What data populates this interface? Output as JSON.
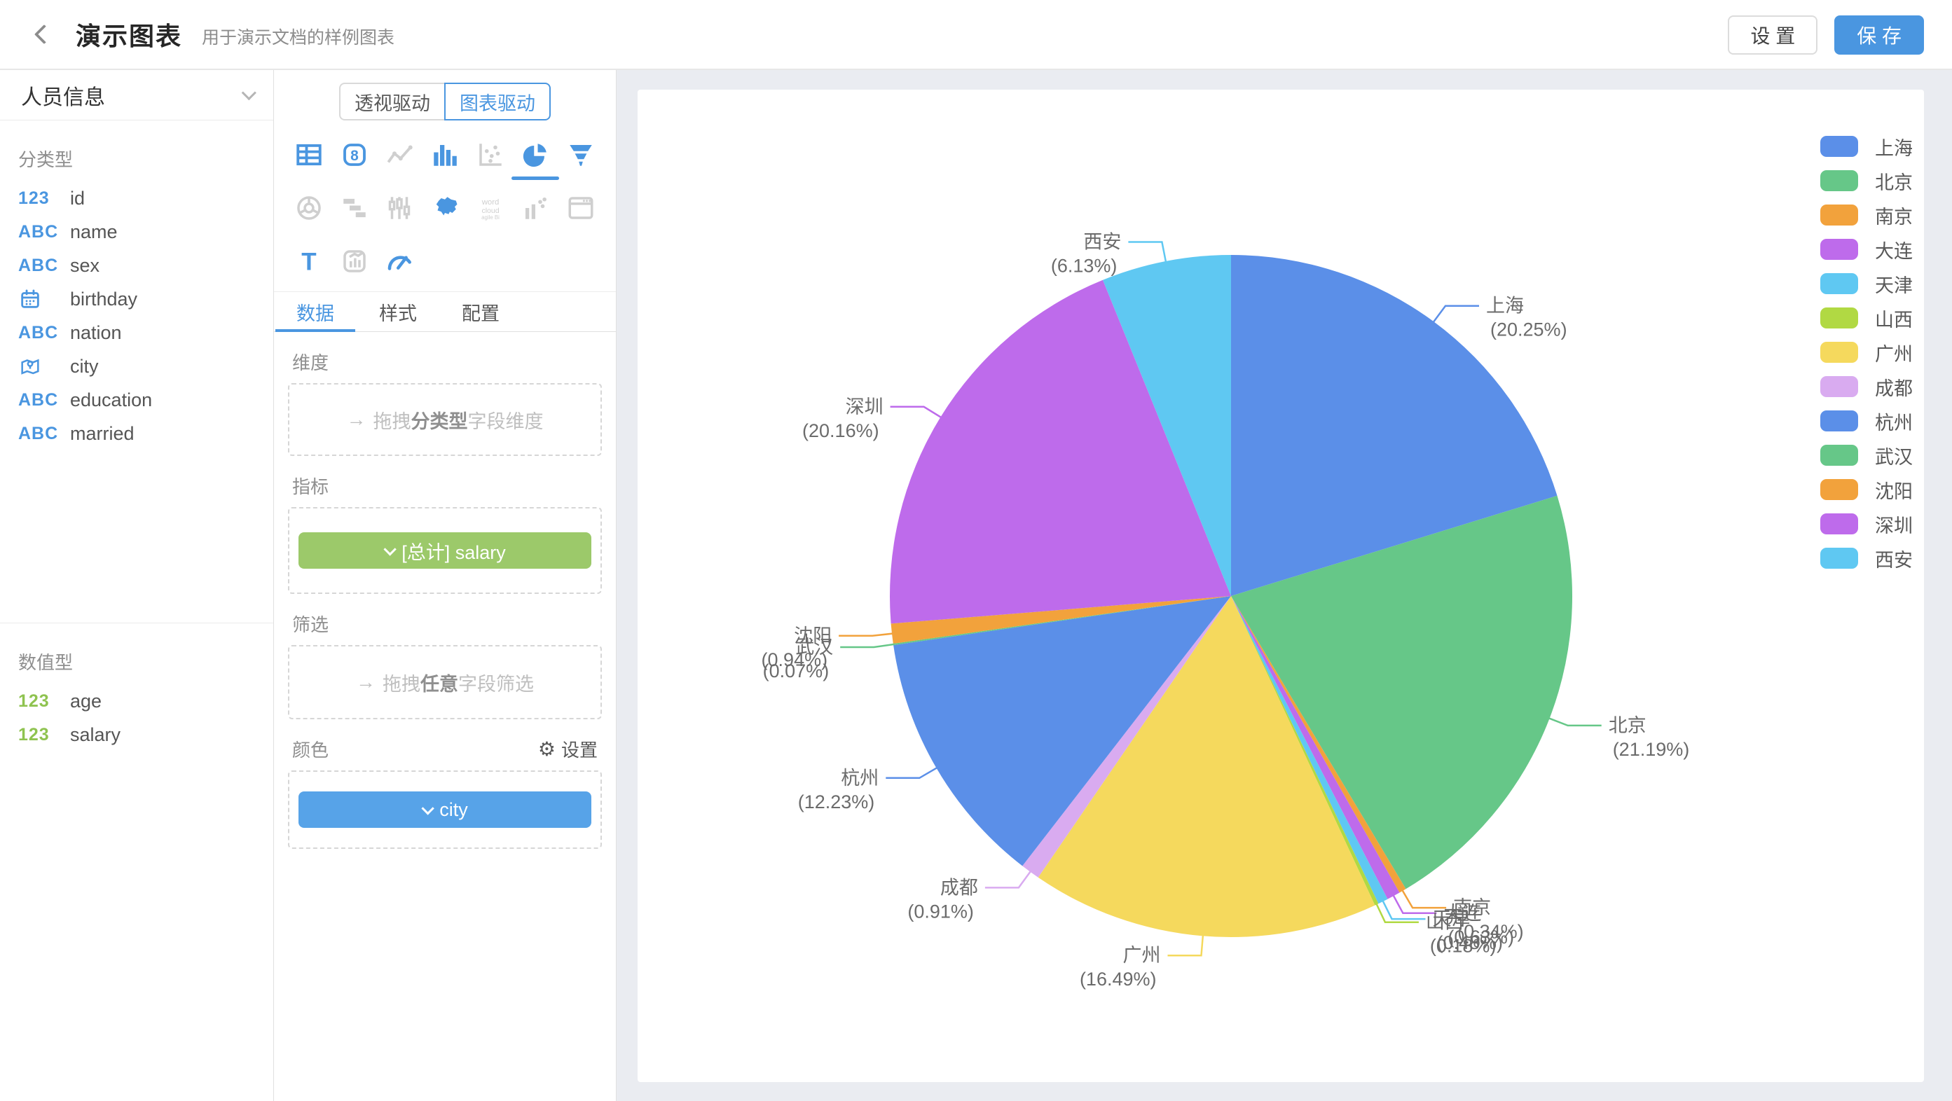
{
  "header": {
    "title": "演示图表",
    "subtitle": "用于演示文档的样例图表",
    "settings_label": "设 置",
    "save_label": "保 存"
  },
  "sidebar": {
    "dataset": "人员信息",
    "categorical_title": "分类型",
    "categorical_fields": [
      {
        "type": "number",
        "label": "id"
      },
      {
        "type": "text",
        "label": "name"
      },
      {
        "type": "text",
        "label": "sex"
      },
      {
        "type": "date",
        "label": "birthday"
      },
      {
        "type": "text",
        "label": "nation"
      },
      {
        "type": "location",
        "label": "city"
      },
      {
        "type": "text",
        "label": "education"
      },
      {
        "type": "text",
        "label": "married"
      }
    ],
    "numeric_title": "数值型",
    "numeric_fields": [
      {
        "type": "number",
        "label": "age"
      },
      {
        "type": "number",
        "label": "salary"
      }
    ],
    "icon_glyphs": {
      "number": "123",
      "text": "ABC"
    }
  },
  "panel": {
    "mode_pivot": "透视驱动",
    "mode_chart": "图表驱动",
    "chart_types": [
      {
        "name": "table",
        "active": true
      },
      {
        "name": "indicator-card",
        "active": true
      },
      {
        "name": "line-chart",
        "active": false
      },
      {
        "name": "bar-chart",
        "active": true
      },
      {
        "name": "scatter-plot",
        "active": false
      },
      {
        "name": "pie-chart",
        "active": true,
        "selected": true
      },
      {
        "name": "funnel-chart",
        "active": true
      },
      {
        "name": "radar-chart",
        "active": false
      },
      {
        "name": "gantt-chart",
        "active": false
      },
      {
        "name": "candlestick-chart",
        "active": false
      },
      {
        "name": "china-map",
        "active": true
      },
      {
        "name": "word-cloud",
        "active": false
      },
      {
        "name": "combo-chart",
        "active": false
      },
      {
        "name": "web-frame",
        "active": false
      },
      {
        "name": "text-label",
        "active": true
      },
      {
        "name": "chart-card",
        "active": false
      },
      {
        "name": "gauge-chart",
        "active": true
      }
    ],
    "tabs": [
      "数据",
      "样式",
      "配置"
    ],
    "sections": {
      "dimension_label": "维度",
      "dimension_ph_prefix": "拖拽",
      "dimension_ph_bold": "分类型",
      "dimension_ph_suffix": "字段维度",
      "measure_label": "指标",
      "measure_pill": "[总计] salary",
      "filter_label": "筛选",
      "filter_ph_prefix": "拖拽",
      "filter_ph_bold": "任意",
      "filter_ph_suffix": "字段筛选",
      "color_label": "颜色",
      "color_settings": "设置",
      "color_pill": "city"
    }
  },
  "chart_data": {
    "type": "pie",
    "categories": [
      "上海",
      "北京",
      "南京",
      "大连",
      "天津",
      "山西",
      "广州",
      "成都",
      "杭州",
      "武汉",
      "沈阳",
      "深圳",
      "西安"
    ],
    "values": [
      20.25,
      21.19,
      0.34,
      0.63,
      0.48,
      0.18,
      16.49,
      0.91,
      12.23,
      0.07,
      0.94,
      20.16,
      6.13
    ],
    "unit": "%",
    "palette": [
      "#5b8fe8",
      "#66c788",
      "#f2a23c",
      "#be6beb",
      "#5fc8f2",
      "#b1d943",
      "#f5d95d",
      "#d9abf0"
    ],
    "legend_position": "right",
    "start_angle_deg": 0,
    "direction": "clockwise",
    "label_format": "{name}\n({value}%)"
  }
}
